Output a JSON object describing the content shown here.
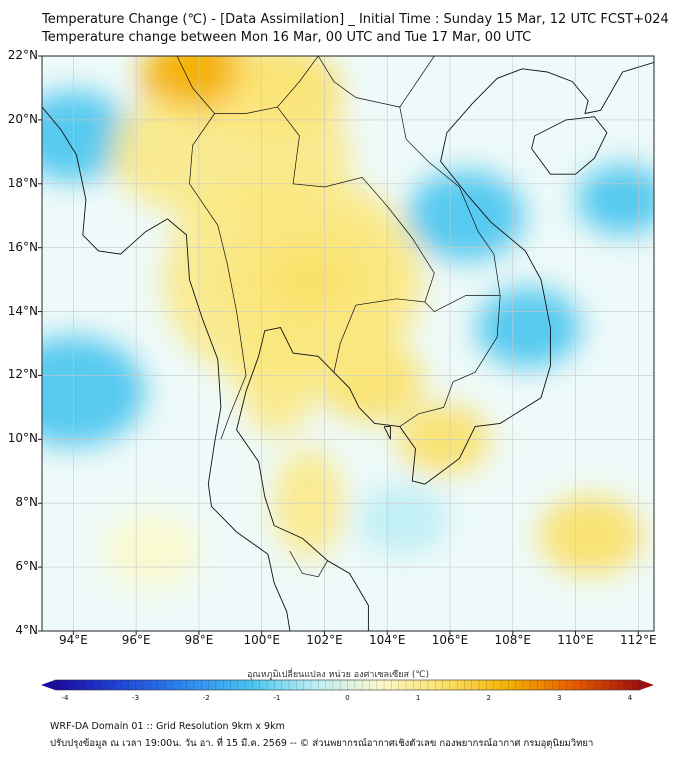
{
  "header": {
    "title_line1": "Temperature Change (℃) - [Data Assimilation] _ Initial Time : Sunday 15 Mar, 12 UTC FCST+024",
    "title_line2": "Temperature change between Mon 16 Mar, 00 UTC and Tue 17 Mar, 00 UTC"
  },
  "map": {
    "lat_labels": [
      "22°N",
      "20°N",
      "18°N",
      "16°N",
      "14°N",
      "12°N",
      "10°N",
      "8°N",
      "6°N",
      "4°N"
    ],
    "lon_labels": [
      "94°E",
      "96°E",
      "98°E",
      "100°E",
      "102°E",
      "104°E",
      "106°E",
      "108°E",
      "110°E",
      "112°E"
    ],
    "lat_range": [
      4,
      22
    ],
    "lon_range": [
      93,
      112.5
    ],
    "grid": true,
    "warm_areas": [
      {
        "lon": 101.5,
        "lat": 15.0,
        "change": 1.6
      },
      {
        "lon": 98.0,
        "lat": 21.3,
        "change": 2.4
      },
      {
        "lon": 100.5,
        "lat": 20.8,
        "change": 1.2
      },
      {
        "lon": 103.5,
        "lat": 11.8,
        "change": 0.9
      },
      {
        "lon": 105.8,
        "lat": 10.0,
        "change": 1.0
      },
      {
        "lon": 110.5,
        "lat": 7.0,
        "change": 1.1
      },
      {
        "lon": 96.5,
        "lat": 6.5,
        "change": 0.8
      }
    ],
    "cool_areas": [
      {
        "lon": 94.0,
        "lat": 11.5,
        "change": -1.3
      },
      {
        "lon": 94.0,
        "lat": 19.5,
        "change": -1.1
      },
      {
        "lon": 106.5,
        "lat": 17.0,
        "change": -1.0
      },
      {
        "lon": 111.5,
        "lat": 17.5,
        "change": -1.1
      },
      {
        "lon": 108.5,
        "lat": 13.5,
        "change": -0.9
      },
      {
        "lon": 104.5,
        "lat": 7.5,
        "change": -0.6
      }
    ]
  },
  "colorbar": {
    "title": "อุณหภูมิเปลี่ยนแปลง หน่วย องศาเซลเซียส (℃)",
    "min": -4,
    "max": 4,
    "ticks": [
      "-4",
      "-3",
      "-2",
      "-1",
      "0",
      "1",
      "2",
      "3",
      "4"
    ],
    "colors": [
      "#1a0aa0",
      "#1f45d8",
      "#2f86f0",
      "#46c4ee",
      "#bdeef5",
      "#fbf8cc",
      "#fbe066",
      "#f4b000",
      "#e85a00",
      "#a01010"
    ]
  },
  "footer": {
    "line1": "WRF-DA Domain 01 :: Grid Resolution 9km x 9km",
    "line2": "ปรับปรุงข้อมูล ณ เวลา 19:00น. วัน อา. ที่ 15 มี.ค. 2569 -- © ส่วนพยากรณ์อากาศเชิงตัวเลข กองพยากรณ์อากาศ กรมอุตุนิยมวิทยา"
  }
}
